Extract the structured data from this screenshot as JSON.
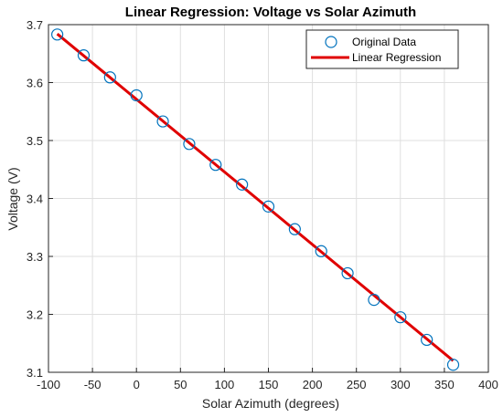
{
  "chart_data": {
    "type": "scatter",
    "title": "Linear Regression: Voltage vs Solar Azimuth",
    "xlabel": "Solar Azimuth (degrees)",
    "ylabel": "Voltage (V)",
    "xlim": [
      -100,
      400
    ],
    "ylim": [
      3.1,
      3.7
    ],
    "xticks": [
      -100,
      -50,
      0,
      50,
      100,
      150,
      200,
      250,
      300,
      350,
      400
    ],
    "yticks": [
      3.1,
      3.2,
      3.3,
      3.4,
      3.5,
      3.6,
      3.7
    ],
    "grid": true,
    "legend_position": "top-right",
    "series": [
      {
        "name": "Original Data",
        "kind": "scatter",
        "marker": "circle",
        "color": "#0072BD",
        "x": [
          -90,
          -60,
          -30,
          0,
          30,
          60,
          90,
          120,
          150,
          180,
          210,
          240,
          270,
          300,
          330,
          360
        ],
        "y": [
          3.683,
          3.647,
          3.609,
          3.578,
          3.533,
          3.494,
          3.458,
          3.424,
          3.386,
          3.347,
          3.309,
          3.271,
          3.225,
          3.195,
          3.156,
          3.113
        ]
      },
      {
        "name": "Linear Regression",
        "kind": "line",
        "color": "#E00000",
        "x": [
          -90,
          360
        ],
        "y": [
          3.684,
          3.12
        ]
      }
    ]
  }
}
